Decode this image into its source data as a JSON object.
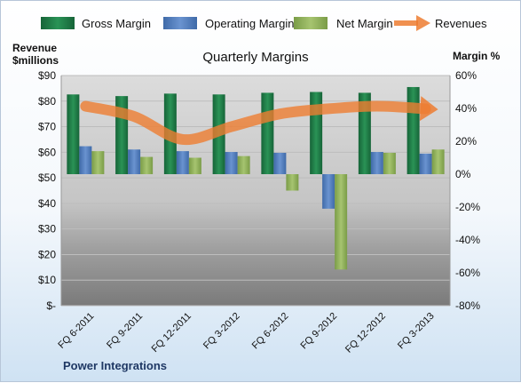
{
  "chart_data": {
    "type": "bar",
    "title": "Quarterly Margins",
    "footer": "Power Integrations",
    "categories": [
      "FQ 6-2011",
      "FQ 9-2011",
      "FQ 12-2011",
      "FQ 3-2012",
      "FQ 6-2012",
      "FQ 9-2012",
      "FQ 12-2012",
      "FQ 3-2013"
    ],
    "left_axis": {
      "label_line1": "Revenue",
      "label_line2": "$millions",
      "ylim": [
        0,
        90
      ],
      "ticks": [
        0,
        10,
        20,
        30,
        40,
        50,
        60,
        70,
        80,
        90
      ],
      "tick_labels": [
        "$-",
        "$10",
        "$20",
        "$30",
        "$40",
        "$50",
        "$60",
        "$70",
        "$80",
        "$90"
      ]
    },
    "right_axis": {
      "label": "Margin %",
      "ylim": [
        -80,
        60
      ],
      "ticks": [
        -80,
        -60,
        -40,
        -20,
        0,
        20,
        40,
        60
      ],
      "tick_labels": [
        "-80%",
        "-60%",
        "-40%",
        "-20%",
        "0%",
        "20%",
        "40%",
        "60%"
      ]
    },
    "series": [
      {
        "name": "Gross Margin",
        "type": "bar",
        "axis": "right",
        "color": "#1e7b45",
        "values": [
          48.5,
          47.5,
          49,
          48.5,
          49.5,
          50,
          49.5,
          53
        ]
      },
      {
        "name": "Operating Margin",
        "type": "bar",
        "axis": "right",
        "color": "#4f7ec1",
        "values": [
          17,
          15,
          14,
          13.5,
          13,
          -21,
          13.5,
          12.5
        ]
      },
      {
        "name": "Net Margin",
        "type": "bar",
        "axis": "right",
        "color": "#8fb15a",
        "values": [
          14,
          10.5,
          10,
          11,
          -10,
          -58,
          13,
          15
        ]
      },
      {
        "name": "Revenues",
        "type": "line",
        "axis": "left",
        "color": "#ed7d31",
        "values": [
          78,
          74,
          65,
          70,
          75,
          77,
          78,
          77
        ]
      }
    ],
    "grid": true,
    "legend": "top"
  }
}
